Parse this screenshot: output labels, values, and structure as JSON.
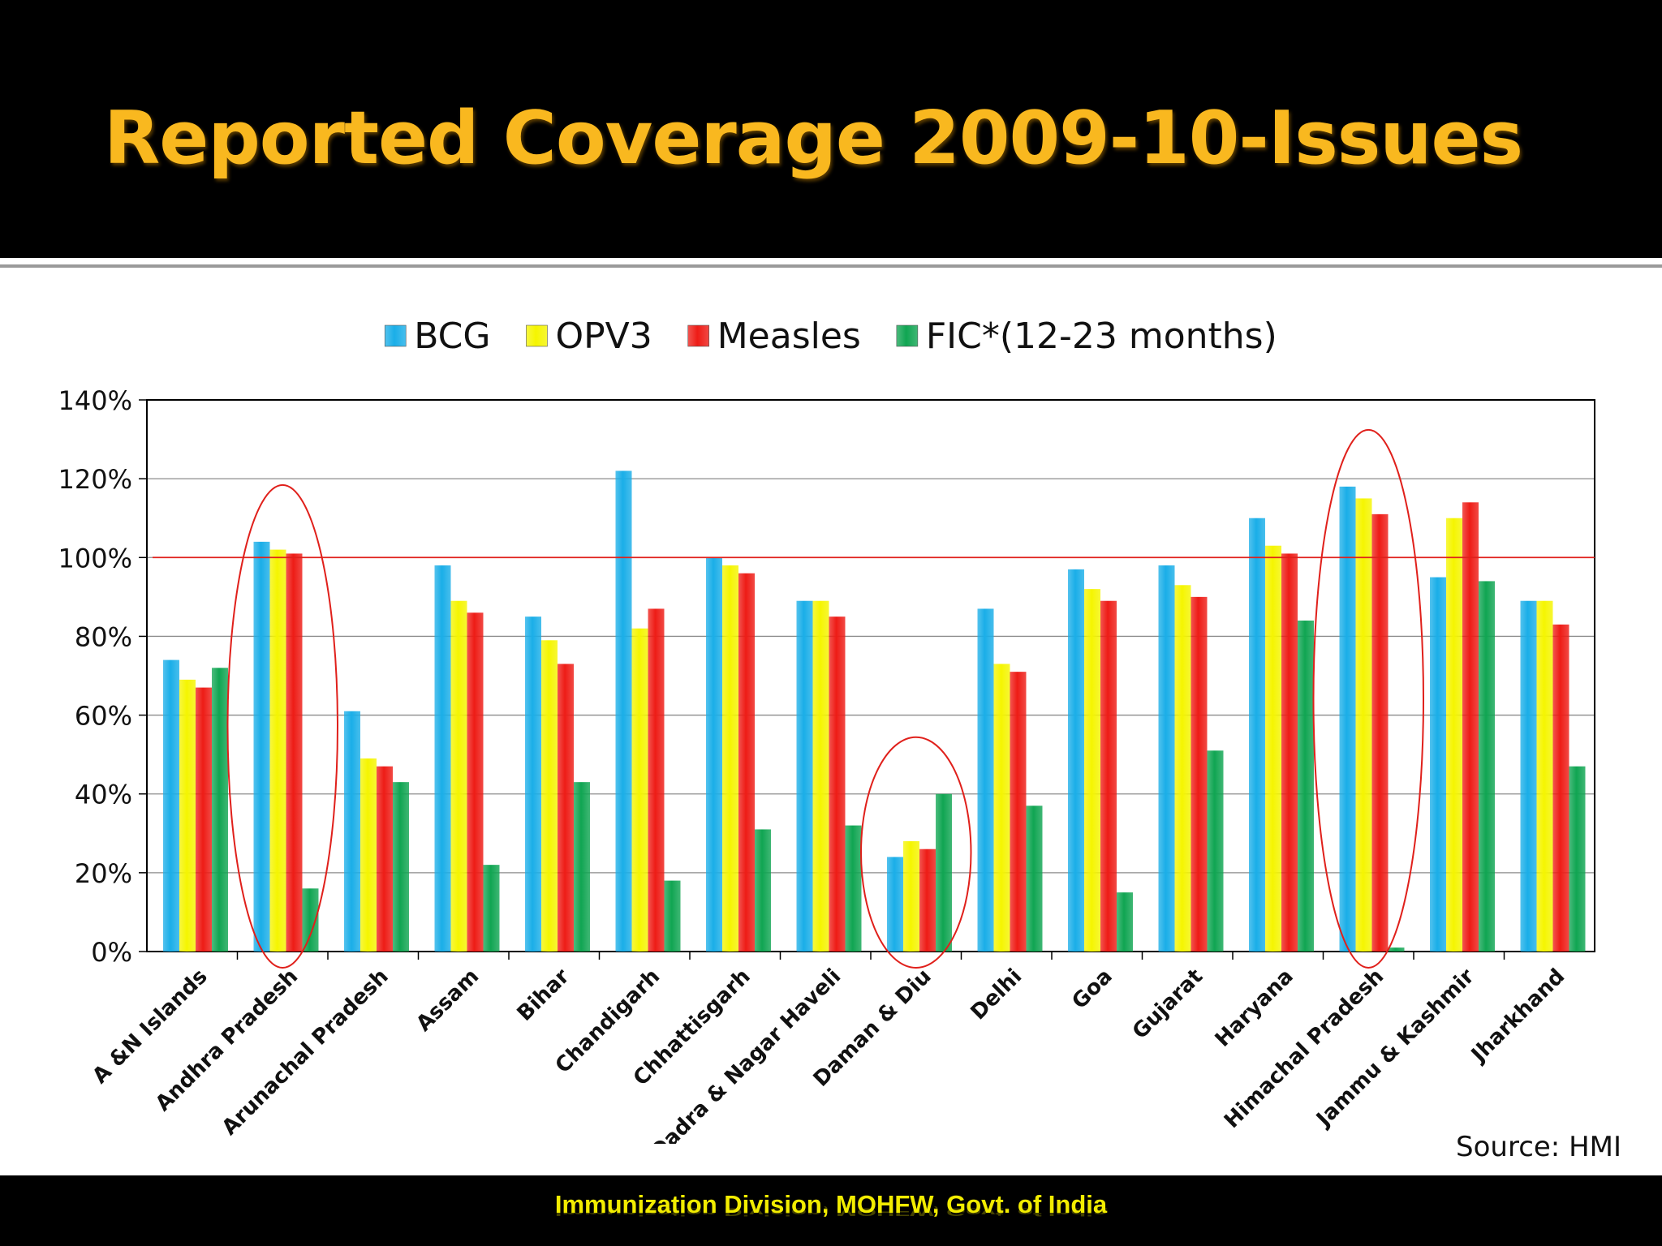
{
  "slide": {
    "title": "Reported Coverage 2009-10-Issues",
    "source": "Source: HMI",
    "footer": "Immunization Division, MOHFW, Govt. of India"
  },
  "colors": {
    "background": "#ffffff",
    "header_bg": "#000000",
    "title": "#f9b81f",
    "footer_text": "#f2ec00",
    "reference_line": "#e0201b",
    "highlight_ellipse": "#e0201b"
  },
  "chart_data": {
    "type": "bar",
    "title": "",
    "xlabel": "",
    "ylabel": "",
    "ylim": [
      0,
      1.4
    ],
    "y_ticks": [
      "0%",
      "20%",
      "40%",
      "60%",
      "80%",
      "100%",
      "120%",
      "140%"
    ],
    "grid": true,
    "legend_position": "top-center",
    "categories": [
      "A &N Islands",
      "Andhra Pradesh",
      "Arunachal Pradesh",
      "Assam",
      "Bihar",
      "Chandigarh",
      "Chhattisgarh",
      "Dadra & Nagar Haveli",
      "Daman & Diu",
      "Delhi",
      "Goa",
      "Gujarat",
      "Haryana",
      "Himachal Pradesh",
      "Jammu & Kashmir",
      "Jharkhand"
    ],
    "series": [
      {
        "name": "BCG",
        "color": "#1aaee8",
        "values": [
          0.74,
          1.04,
          0.61,
          0.98,
          0.85,
          1.22,
          1.0,
          0.89,
          0.24,
          0.87,
          0.97,
          0.98,
          1.1,
          1.18,
          0.95,
          0.89
        ]
      },
      {
        "name": "OPV3",
        "color": "#f5f500",
        "values": [
          0.69,
          1.02,
          0.49,
          0.89,
          0.79,
          0.82,
          0.98,
          0.89,
          0.28,
          0.73,
          0.92,
          0.93,
          1.03,
          1.15,
          1.1,
          0.89
        ]
      },
      {
        "name": "Measles",
        "color": "#ee1c16",
        "values": [
          0.67,
          1.01,
          0.47,
          0.86,
          0.73,
          0.87,
          0.96,
          0.85,
          0.26,
          0.71,
          0.89,
          0.9,
          1.01,
          1.11,
          1.14,
          0.83
        ]
      },
      {
        "name": "FIC*(12-23 months)",
        "color": "#10a552",
        "values": [
          0.72,
          0.16,
          0.43,
          0.22,
          0.43,
          0.18,
          0.31,
          0.32,
          0.4,
          0.37,
          0.15,
          0.51,
          0.84,
          0.01,
          0.94,
          0.47
        ]
      }
    ],
    "reference_line": 1.0,
    "highlighted_categories": [
      "Andhra Pradesh",
      "Daman & Diu",
      "Himachal Pradesh"
    ]
  }
}
